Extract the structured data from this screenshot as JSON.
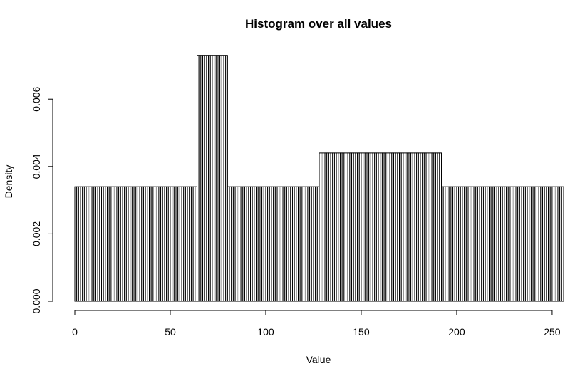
{
  "chart_data": {
    "type": "bar",
    "title": "Histogram over all values",
    "xlabel": "Value",
    "ylabel": "Density",
    "x_ticks": [
      "0",
      "50",
      "100",
      "150",
      "200",
      "250"
    ],
    "x_tick_values": [
      0,
      50,
      100,
      150,
      200,
      250
    ],
    "y_ticks": [
      "0.000",
      "0.002",
      "0.004",
      "0.006"
    ],
    "y_tick_values": [
      0,
      0.002,
      0.004,
      0.006
    ],
    "xlim": [
      0,
      256
    ],
    "ylim": [
      0,
      0.0074
    ],
    "bin_width": 1,
    "bins": [
      {
        "from": 0,
        "to": 64,
        "density": 0.0034
      },
      {
        "from": 64,
        "to": 80,
        "density": 0.0073
      },
      {
        "from": 80,
        "to": 128,
        "density": 0.0034
      },
      {
        "from": 128,
        "to": 192,
        "density": 0.0044
      },
      {
        "from": 192,
        "to": 256,
        "density": 0.0034
      }
    ],
    "grid": false,
    "legend": "none",
    "bar_fill": "#ffffff",
    "bar_stroke": "#000000"
  }
}
